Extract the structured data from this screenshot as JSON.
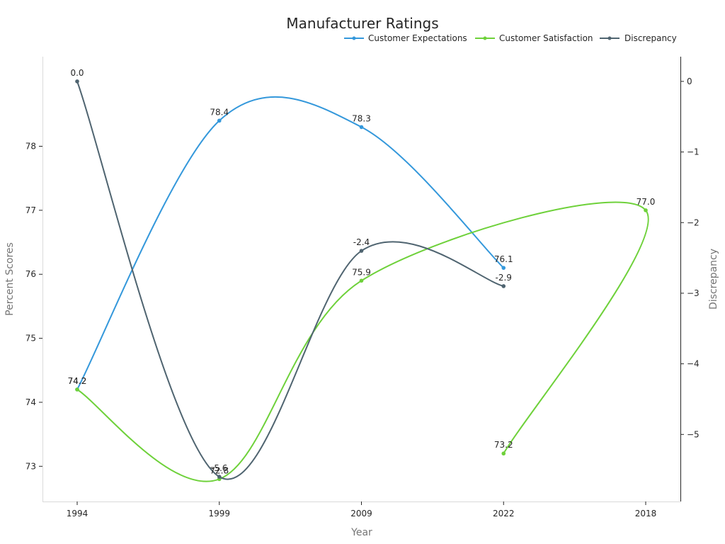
{
  "chart_data": {
    "type": "line",
    "title": "Manufacturer Ratings",
    "xlabel": "Year",
    "ylabel": "Percent Scores",
    "y2label": "Discrepancy",
    "categories": [
      "1994",
      "1999",
      "2009",
      "2022",
      "2018"
    ],
    "ylim": [
      72.45,
      79.4
    ],
    "y2lim": [
      -5.95,
      0.35
    ],
    "yticks": [
      73,
      74,
      75,
      76,
      77,
      78
    ],
    "y2ticks": [
      0,
      -1,
      -2,
      -3,
      -4,
      -5
    ],
    "y2tick_labels": [
      "0",
      "−1",
      "−2",
      "−3",
      "−4",
      "−5"
    ],
    "grid": false,
    "legend_position": "top-right",
    "series": [
      {
        "name": "Customer Expectations",
        "axis": "left",
        "color": "#3498db",
        "points": [
          {
            "x": "1994",
            "y": 74.2,
            "label": "74.2"
          },
          {
            "x": "1999",
            "y": 78.4,
            "label": "78.4"
          },
          {
            "x": "2009",
            "y": 78.3,
            "label": "78.3"
          },
          {
            "x": "2022",
            "y": 76.1,
            "label": "76.1"
          }
        ]
      },
      {
        "name": "Customer Satisfaction",
        "axis": "left",
        "color": "#6ed13a",
        "points": [
          {
            "x": "1994",
            "y": 74.2,
            "label": "74.2"
          },
          {
            "x": "1999",
            "y": 72.8,
            "label": "72.8"
          },
          {
            "x": "2009",
            "y": 75.9,
            "label": "75.9"
          },
          {
            "x": "2018",
            "y": 77.0,
            "label": "77.0"
          },
          {
            "x": "2022",
            "y": 73.2,
            "label": "73.2"
          }
        ]
      },
      {
        "name": "Discrepancy",
        "axis": "right",
        "color": "#4f6470",
        "points": [
          {
            "x": "1994",
            "y": 0.0,
            "label": "0.0"
          },
          {
            "x": "1999",
            "y": -5.6,
            "label": "-5.6"
          },
          {
            "x": "2009",
            "y": -2.4,
            "label": "-2.4"
          },
          {
            "x": "2022",
            "y": -2.9,
            "label": "-2.9"
          }
        ]
      }
    ]
  }
}
